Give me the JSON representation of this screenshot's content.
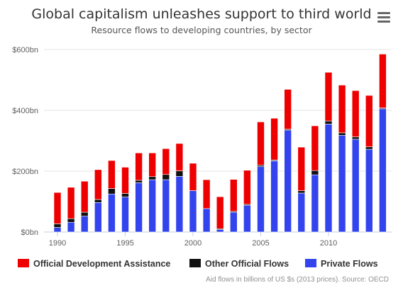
{
  "header": {
    "title": "Global capitalism unleashes support to third world",
    "subtitle": "Resource flows to developing countries, by sector",
    "menu_icon": "hamburger-menu-icon"
  },
  "credits": "Aid flows in billions of US $s (2013 prices). Source: OECD",
  "chart_data": {
    "type": "bar",
    "stacked": true,
    "title": "Global capitalism unleashes support to third world",
    "subtitle": "Resource flows to developing countries, by sector",
    "xlabel": "",
    "ylabel": "",
    "ylim": [
      0,
      600
    ],
    "yticks": [
      0,
      200,
      400,
      600
    ],
    "ytick_labels": [
      "$0bn",
      "$200bn",
      "$400bn",
      "$600bn"
    ],
    "xticks": [
      1990,
      1995,
      2000,
      2005,
      2010
    ],
    "grid": true,
    "legend_position": "bottom",
    "categories": [
      1990,
      1991,
      1992,
      1993,
      1994,
      1995,
      1996,
      1997,
      1998,
      1999,
      2000,
      2001,
      2002,
      2003,
      2004,
      2005,
      2006,
      2007,
      2008,
      2009,
      2010,
      2011,
      2012,
      2013,
      2014
    ],
    "series": [
      {
        "name": "Private Flows",
        "color": "#3344ee",
        "values": [
          15,
          32,
          52,
          97,
          125,
          115,
          162,
          172,
          172,
          183,
          136,
          77,
          8,
          65,
          88,
          215,
          234,
          335,
          128,
          188,
          355,
          318,
          305,
          272,
          405
        ]
      },
      {
        "name": "Other Official Flows",
        "color": "#111111",
        "values": [
          12,
          12,
          13,
          10,
          18,
          12,
          8,
          10,
          17,
          18,
          0,
          0,
          3,
          3,
          3,
          5,
          3,
          3,
          8,
          14,
          10,
          8,
          8,
          8,
          3
        ]
      },
      {
        "name": "Official Development Assistance",
        "color": "#ee0000",
        "values": [
          103,
          103,
          102,
          98,
          92,
          86,
          90,
          78,
          85,
          90,
          90,
          95,
          105,
          105,
          112,
          142,
          137,
          131,
          143,
          147,
          160,
          157,
          152,
          169,
          177
        ]
      }
    ],
    "legend": [
      {
        "name": "Official Development Assistance",
        "color": "#ee0000"
      },
      {
        "name": "Other Official Flows",
        "color": "#111111"
      },
      {
        "name": "Private Flows",
        "color": "#3344ee"
      }
    ]
  }
}
